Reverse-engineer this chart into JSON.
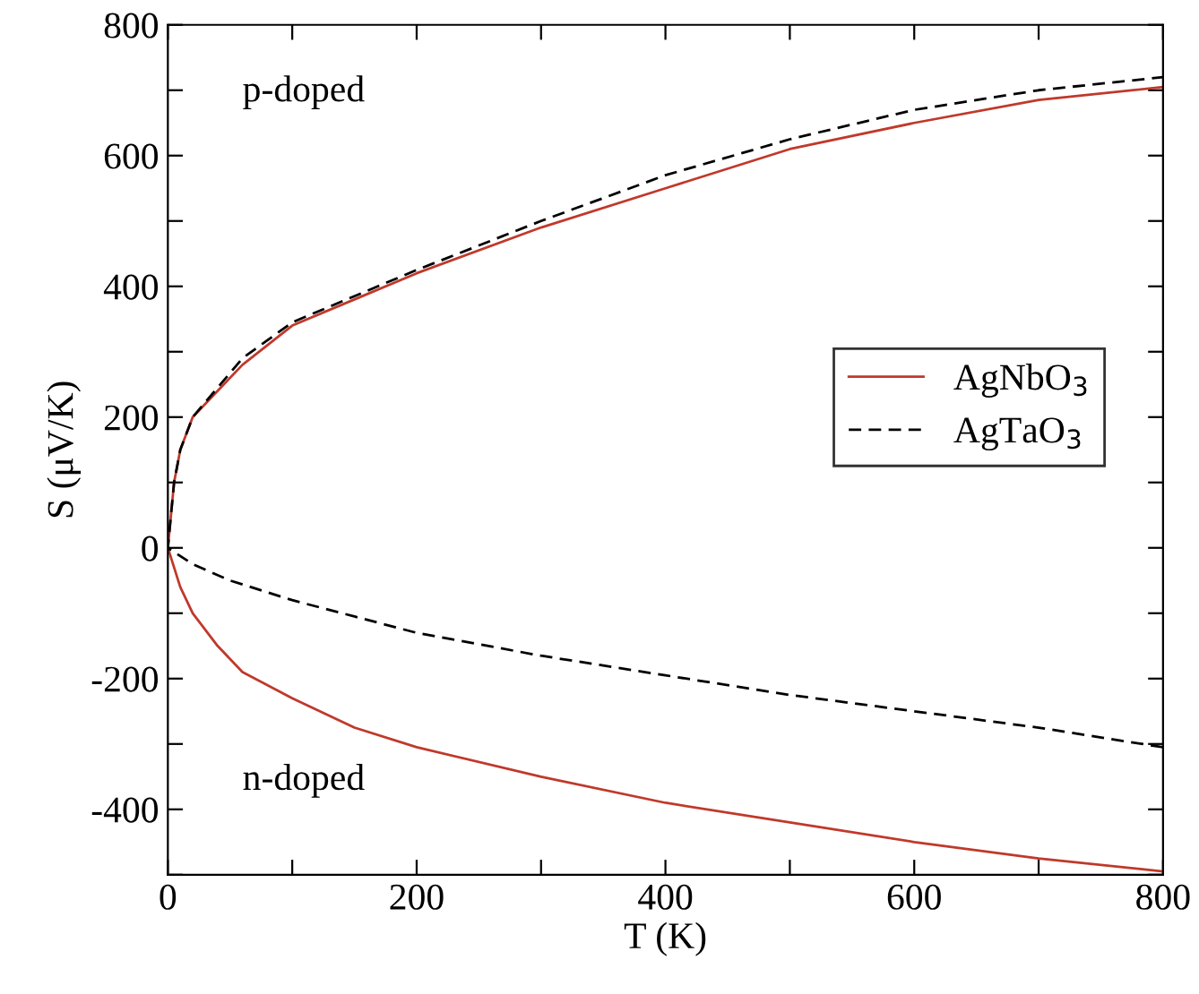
{
  "chart_data": {
    "type": "line",
    "xlabel": "T (K)",
    "ylabel": "S (μV/K)",
    "xlim": [
      0,
      800
    ],
    "ylim": [
      -500,
      800
    ],
    "xticks": [
      0,
      {
        "value": 100,
        "label": null
      },
      200,
      {
        "value": 300,
        "label": null
      },
      400,
      {
        "value": 500,
        "label": null
      },
      600,
      {
        "value": 700,
        "label": null
      },
      800
    ],
    "yticks": [
      {
        "value": -500,
        "label": null
      },
      -400,
      {
        "value": -300,
        "label": null
      },
      -200,
      {
        "value": -100,
        "label": null
      },
      0,
      {
        "value": 100,
        "label": null
      },
      200,
      {
        "value": 300,
        "label": null
      },
      400,
      {
        "value": 500,
        "label": null
      },
      600,
      {
        "value": 700,
        "label": null
      },
      800
    ],
    "grid": false,
    "legend": "right",
    "marker": "none",
    "annotations": [
      "p-doped",
      "n-doped"
    ],
    "series": [
      {
        "name": "AgNbO$_{3}$",
        "color": "#c0392b",
        "line_style": "solid",
        "x": [
          800,
          700,
          600,
          500,
          400,
          300,
          200,
          150,
          100,
          60,
          40,
          20,
          10,
          0,
          5,
          10,
          20,
          40,
          60,
          100,
          150,
          200,
          300,
          400,
          500,
          600,
          700,
          800
        ],
        "values": [
          -495,
          -475,
          -450,
          -420,
          -390,
          -350,
          -305,
          -275,
          -230,
          -190,
          -150,
          -100,
          -60,
          0,
          100,
          150,
          200,
          240,
          280,
          340,
          380,
          420,
          490,
          550,
          610,
          650,
          685,
          705
        ]
      },
      {
        "name": "AgTaO$_{3}$",
        "color": "#000000",
        "line_style": "dashed",
        "x": [
          800,
          700,
          600,
          500,
          400,
          300,
          200,
          150,
          100,
          50,
          20,
          0,
          5,
          10,
          20,
          40,
          60,
          100,
          150,
          200,
          300,
          400,
          500,
          600,
          700,
          800
        ],
        "values": [
          -305,
          -275,
          -250,
          -225,
          -195,
          -165,
          -130,
          -105,
          -80,
          -50,
          -25,
          0,
          100,
          150,
          200,
          245,
          290,
          345,
          385,
          425,
          500,
          570,
          625,
          670,
          700,
          720
        ]
      }
    ]
  }
}
